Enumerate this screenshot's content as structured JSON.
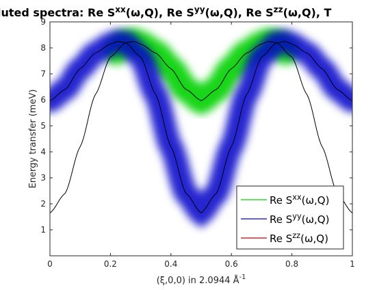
{
  "figure": {
    "title_parts": [
      {
        "text": "luted spectra: Re S"
      },
      {
        "text": "xx",
        "sup": true
      },
      {
        "text": "(ω,Q), Re S"
      },
      {
        "text": "yy",
        "sup": true
      },
      {
        "text": "(ω,Q), Re S"
      },
      {
        "text": "zz",
        "sup": true
      },
      {
        "text": "(ω,Q), T"
      }
    ],
    "xlabel_parts": [
      {
        "text": "(ξ,0,0) in 2.0944 Å"
      },
      {
        "text": "-1",
        "sup": true
      }
    ],
    "ylabel": "Energy transfer (meV)",
    "background_color": "#ffffff",
    "axes_color": "#262626"
  },
  "chart_data": {
    "type": "line",
    "xlim": [
      0,
      1
    ],
    "ylim": [
      0,
      9
    ],
    "xticks": [
      0,
      0.2,
      0.4,
      0.6,
      0.8,
      1
    ],
    "xtick_labels": [
      "0",
      "0.2",
      "0.4",
      "0.6",
      "0.8",
      "1"
    ],
    "yticks": [
      1,
      2,
      3,
      4,
      5,
      6,
      7,
      8,
      9
    ],
    "ytick_labels": [
      "1",
      "2",
      "3",
      "4",
      "5",
      "6",
      "7",
      "8",
      "9"
    ],
    "grid": false,
    "legend_position": "bottom-right",
    "series": [
      {
        "name_parts": [
          {
            "text": "Re S"
          },
          {
            "text": "xx",
            "sup": true
          },
          {
            "text": "(ω,Q)"
          }
        ],
        "color": "#00d000",
        "x": [
          0.0,
          0.05,
          0.1,
          0.15,
          0.2,
          0.25,
          0.278,
          0.3,
          0.35,
          0.4,
          0.45,
          0.5,
          0.55,
          0.6,
          0.65,
          0.7,
          0.722,
          0.75,
          0.8,
          0.85,
          0.9,
          0.95,
          1.0
        ],
        "y": [
          1.65,
          2.4,
          4.2,
          6.2,
          7.65,
          8.2,
          8.25,
          8.15,
          7.8,
          7.2,
          6.4,
          5.97,
          6.4,
          7.2,
          7.8,
          8.15,
          8.25,
          8.2,
          7.65,
          6.2,
          4.2,
          2.4,
          1.65
        ],
        "band": {
          "x_from": 0.22,
          "x_to": 0.78,
          "spread": 0.5,
          "strength": 0.9
        }
      },
      {
        "name_parts": [
          {
            "text": "Re S"
          },
          {
            "text": "yy",
            "sup": true
          },
          {
            "text": "(ω,Q)"
          }
        ],
        "color": "#0000c8",
        "x": [
          0.0,
          0.05,
          0.1,
          0.15,
          0.2,
          0.222,
          0.25,
          0.3,
          0.35,
          0.4,
          0.45,
          0.5,
          0.55,
          0.6,
          0.65,
          0.7,
          0.75,
          0.778,
          0.8,
          0.85,
          0.9,
          0.95,
          1.0
        ],
        "y": [
          5.97,
          6.4,
          7.2,
          7.8,
          8.15,
          8.25,
          8.2,
          7.65,
          6.2,
          4.2,
          2.4,
          1.65,
          2.4,
          4.2,
          6.2,
          7.65,
          8.2,
          8.25,
          8.15,
          7.8,
          7.2,
          6.4,
          5.97
        ],
        "band": {
          "x_from": 0.0,
          "x_to": 1.0,
          "spread": 0.45,
          "strength": 0.85
        }
      },
      {
        "name_parts": [
          {
            "text": "Re S"
          },
          {
            "text": "zz",
            "sup": true
          },
          {
            "text": "(ω,Q)"
          }
        ],
        "color": "#c80000",
        "x": [
          0.0,
          0.05,
          0.1,
          0.15,
          0.2,
          0.222,
          0.25,
          0.3,
          0.35,
          0.4,
          0.45,
          0.5,
          0.55,
          0.6,
          0.65,
          0.7,
          0.75,
          0.778,
          0.8,
          0.85,
          0.9,
          0.95,
          1.0
        ],
        "y": [
          5.97,
          6.4,
          7.2,
          7.8,
          8.15,
          8.25,
          8.2,
          7.65,
          6.2,
          4.2,
          2.4,
          1.65,
          2.4,
          4.2,
          6.2,
          7.65,
          8.2,
          8.25,
          8.15,
          7.8,
          7.2,
          6.4,
          5.97
        ],
        "band": null
      }
    ],
    "dispersion_lines": [
      {
        "color": "#000000",
        "x": [
          0.0,
          0.05,
          0.1,
          0.15,
          0.2,
          0.25,
          0.278,
          0.3,
          0.35,
          0.4,
          0.45,
          0.5,
          0.55,
          0.6,
          0.65,
          0.7,
          0.722,
          0.75,
          0.8,
          0.85,
          0.9,
          0.95,
          1.0
        ],
        "y": [
          1.65,
          2.4,
          4.2,
          6.2,
          7.65,
          8.2,
          8.25,
          8.15,
          7.8,
          7.2,
          6.4,
          5.97,
          6.4,
          7.2,
          7.8,
          8.15,
          8.25,
          8.2,
          7.65,
          6.2,
          4.2,
          2.4,
          1.65
        ]
      },
      {
        "color": "#000000",
        "x": [
          0.0,
          0.05,
          0.1,
          0.15,
          0.2,
          0.222,
          0.25,
          0.3,
          0.35,
          0.4,
          0.45,
          0.5,
          0.55,
          0.6,
          0.65,
          0.7,
          0.75,
          0.778,
          0.8,
          0.85,
          0.9,
          0.95,
          1.0
        ],
        "y": [
          5.97,
          6.4,
          7.2,
          7.8,
          8.15,
          8.25,
          8.2,
          7.65,
          6.2,
          4.2,
          2.4,
          1.65,
          2.4,
          4.2,
          6.2,
          7.65,
          8.2,
          8.25,
          8.15,
          7.8,
          7.2,
          6.4,
          5.97
        ]
      }
    ]
  }
}
